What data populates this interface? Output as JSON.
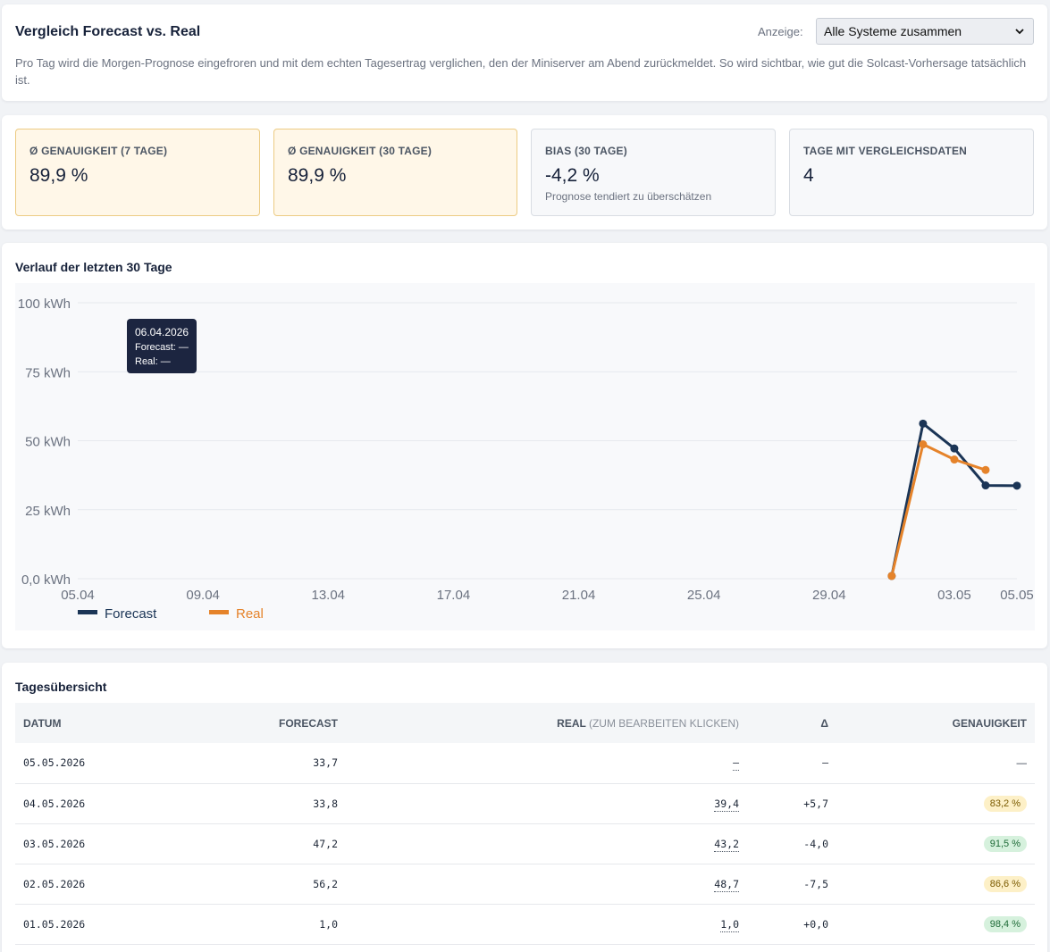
{
  "header": {
    "title": "Vergleich Forecast vs. Real",
    "display_label": "Anzeige:",
    "display_value": "Alle Systeme zusammen",
    "description": "Pro Tag wird die Morgen-Prognose eingefroren und mit dem echten Tagesertrag verglichen, den der Miniserver am Abend zurückmeldet. So wird sichtbar, wie gut die Solcast-Vorhersage tatsächlich ist."
  },
  "stats": [
    {
      "label": "Ø Genauigkeit (7 Tage)",
      "value": "89,9 %",
      "sub": ""
    },
    {
      "label": "Ø Genauigkeit (30 Tage)",
      "value": "89,9 %",
      "sub": ""
    },
    {
      "label": "Bias (30 Tage)",
      "value": "-4,2 %",
      "sub": "Prognose tendiert zu überschätzen"
    },
    {
      "label": "Tage mit Vergleichsdaten",
      "value": "4",
      "sub": ""
    }
  ],
  "chart": {
    "title": "Verlauf der letzten 30 Tage",
    "tooltip": {
      "date": "06.04.2026",
      "forecast": "Forecast: —",
      "real": "Real: —"
    }
  },
  "chart_data": {
    "type": "line",
    "x": [
      "05.04",
      "06.04",
      "07.04",
      "08.04",
      "09.04",
      "10.04",
      "11.04",
      "12.04",
      "13.04",
      "14.04",
      "15.04",
      "16.04",
      "17.04",
      "18.04",
      "19.04",
      "20.04",
      "21.04",
      "22.04",
      "23.04",
      "24.04",
      "25.04",
      "26.04",
      "27.04",
      "28.04",
      "29.04",
      "30.04",
      "01.05",
      "02.05",
      "03.05",
      "04.05",
      "05.05"
    ],
    "x_tick_labels": [
      "05.04",
      "09.04",
      "13.04",
      "17.04",
      "21.04",
      "25.04",
      "29.04",
      "03.05",
      "05.05"
    ],
    "series": [
      {
        "name": "Forecast",
        "color": "#1b3556",
        "values": [
          null,
          null,
          null,
          null,
          null,
          null,
          null,
          null,
          null,
          null,
          null,
          null,
          null,
          null,
          null,
          null,
          null,
          null,
          null,
          null,
          null,
          null,
          null,
          null,
          null,
          null,
          1.0,
          56.2,
          47.2,
          33.8,
          33.7
        ]
      },
      {
        "name": "Real",
        "color": "#e5832a",
        "values": [
          null,
          null,
          null,
          null,
          null,
          null,
          null,
          null,
          null,
          null,
          null,
          null,
          null,
          null,
          null,
          null,
          null,
          null,
          null,
          null,
          null,
          null,
          null,
          null,
          null,
          null,
          1.0,
          48.7,
          43.2,
          39.4,
          null
        ]
      }
    ],
    "y_ticks": [
      0,
      25,
      50,
      75,
      100
    ],
    "y_tick_labels": [
      "0,0 kWh",
      "25 kWh",
      "50 kWh",
      "75 kWh",
      "100 kWh"
    ],
    "ylim": [
      0,
      100
    ],
    "grid": true,
    "legend": "bottom-left"
  },
  "table": {
    "title": "Tagesübersicht",
    "headers": {
      "date": "Datum",
      "forecast": "Forecast",
      "real": "Real",
      "real_hint": "(zum Bearbeiten klicken)",
      "delta": "Δ",
      "accuracy": "Genauigkeit"
    },
    "rows": [
      {
        "date": "05.05.2026",
        "forecast": "33,7",
        "real": "–",
        "delta": "–",
        "accuracy": "—",
        "acc_class": ""
      },
      {
        "date": "04.05.2026",
        "forecast": "33,8",
        "real": "39,4",
        "delta": "+5,7",
        "accuracy": "83,2 %",
        "acc_class": "warn"
      },
      {
        "date": "03.05.2026",
        "forecast": "47,2",
        "real": "43,2",
        "delta": "-4,0",
        "accuracy": "91,5 %",
        "acc_class": "good"
      },
      {
        "date": "02.05.2026",
        "forecast": "56,2",
        "real": "48,7",
        "delta": "-7,5",
        "accuracy": "86,6 %",
        "acc_class": "warn"
      },
      {
        "date": "01.05.2026",
        "forecast": "1,0",
        "real": "1,0",
        "delta": "+0,0",
        "accuracy": "98,4 %",
        "acc_class": "good"
      }
    ]
  }
}
